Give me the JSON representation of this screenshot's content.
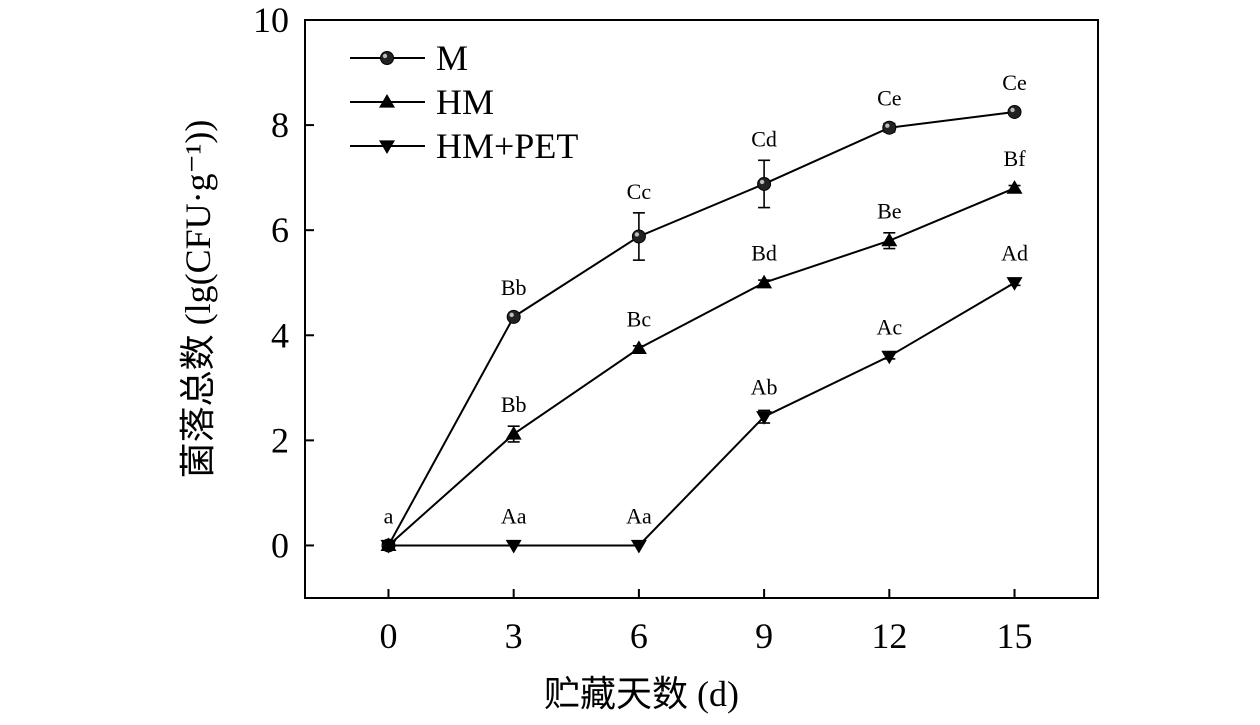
{
  "chart_data": {
    "type": "line",
    "title": "",
    "xlabel": "贮藏天数 (d)",
    "ylabel": "菌落总数 (lg(CFU·g⁻¹))",
    "x": [
      0,
      3,
      6,
      9,
      12,
      15
    ],
    "xlim": [
      -2,
      17
    ],
    "ylim": [
      -1,
      10
    ],
    "xticks": [
      0,
      3,
      6,
      9,
      12,
      15
    ],
    "yticks": [
      0,
      2,
      4,
      6,
      8,
      10
    ],
    "grid": false,
    "legend_position": "top-left",
    "series": [
      {
        "name": "M",
        "marker": "circle",
        "values": [
          0,
          4.35,
          5.88,
          6.88,
          7.95,
          8.25
        ],
        "errors": [
          0,
          0.05,
          0.45,
          0.45,
          0.08,
          0.05
        ],
        "labels": [
          "a",
          "Bb",
          "Cc",
          "Cd",
          "Ce",
          "Ce"
        ]
      },
      {
        "name": "HM",
        "marker": "triangle-up",
        "values": [
          0,
          2.12,
          3.75,
          5.0,
          5.8,
          6.8
        ],
        "errors": [
          0,
          0.15,
          0.05,
          0.05,
          0.15,
          0.05
        ],
        "labels": [
          "",
          "Bb",
          "Bc",
          "Bd",
          "Be",
          "Bf"
        ]
      },
      {
        "name": "HM+PET",
        "marker": "triangle-down",
        "values": [
          0,
          0,
          0,
          2.45,
          3.6,
          5.0
        ],
        "errors": [
          0,
          0,
          0,
          0.12,
          0.05,
          0.05
        ],
        "labels": [
          "",
          "Aa",
          "Aa",
          "Ab",
          "Ac",
          "Ad"
        ]
      }
    ]
  }
}
